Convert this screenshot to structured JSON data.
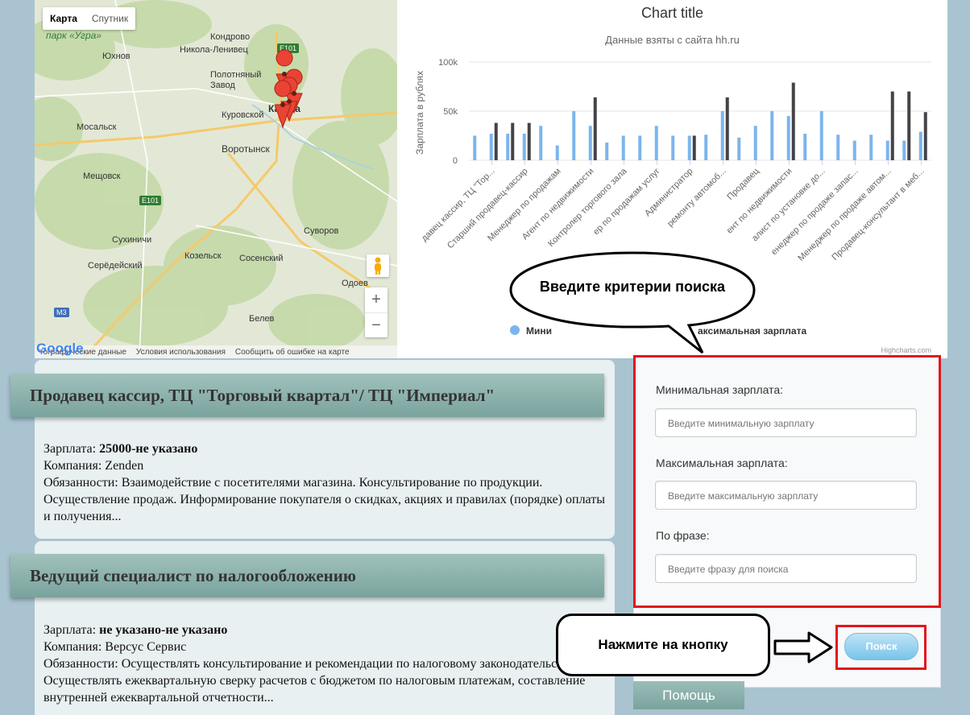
{
  "map": {
    "type_buttons": [
      "Карта",
      "Спутник"
    ],
    "towns": [
      "Кондрово",
      "Никола-Ленивец",
      "Юхнов",
      "Полотняный Завод",
      "Калуга",
      "Куровской",
      "Мосальск",
      "Воротынск",
      "Мещовск",
      "Сухиничи",
      "Серёдейский",
      "Козельск",
      "Сосенский",
      "Суворов",
      "Одоев",
      "Белев"
    ],
    "park_label": "парк «Угра»",
    "road_labels": [
      "E101",
      "E101",
      "M3"
    ],
    "zoom_in": "+",
    "zoom_out": "−",
    "footer": [
      "тографические данные",
      "Условия использования",
      "Сообщить об ошибке на карте"
    ],
    "logo": "Google"
  },
  "chart_data": {
    "type": "bar",
    "title": "Chart title",
    "subtitle": "Данные взяты с сайта hh.ru",
    "ylabel": "Зарплата в рублях",
    "ylim": [
      0,
      100000
    ],
    "yticks": [
      "0",
      "50k",
      "100k"
    ],
    "xticklabels": [
      "давец кассир, ТЦ \"Тор...",
      "Старший продавец-кассир",
      "Менеджер по продажам",
      "Агент по недвижимости",
      "Контролер торгового зала",
      "ер по продажам услуг",
      "Администратор",
      "ремонту автомоб...",
      "Продавец",
      "ент по недвижимости",
      "алист по установке до...",
      "енеджер по продаже запас...",
      "Менеджер по продаже автом...",
      "Продавец-консультант в меб..."
    ],
    "legend_visible": [
      "Мини",
      "аксимальная зарплата"
    ],
    "credit": "Highcharts.com",
    "min_series": [
      25000,
      27000,
      27000,
      27000,
      35000,
      15000,
      50000,
      35000,
      18000,
      25000,
      25000,
      35000,
      25000,
      25000,
      26000,
      50000,
      23000,
      35000,
      50000,
      45000,
      27000,
      50000,
      26000,
      20000,
      26000,
      20000,
      20000,
      29000
    ],
    "max_series": [
      0,
      38000,
      38000,
      38000,
      0,
      0,
      0,
      64000,
      0,
      0,
      0,
      0,
      0,
      25000,
      0,
      64000,
      0,
      0,
      0,
      79000,
      0,
      0,
      0,
      0,
      0,
      70000,
      70000,
      49000
    ]
  },
  "callouts": {
    "search_hint": "Введите критерии поиска",
    "button_hint": "Нажмите на кнопку"
  },
  "vacancies": [
    {
      "title": "Продавец кассир, ТЦ \"Торговый квартал\"/ ТЦ \"Империал\"",
      "salary_label": "Зарплата: ",
      "salary": "25000-не указано",
      "company_label": "Компания: ",
      "company": "Zenden",
      "duties_label": "Обязанности: ",
      "duties": "Взаимодействие с посетителями магазина. Консультирование по продукции. Осуществление продаж. Информирование покупателя о скидках, акциях и правилах (порядке) оплаты и получения..."
    },
    {
      "title": "Ведущий специалист по налогообложению",
      "salary_label": "Зарплата: ",
      "salary": "не указано-не указано",
      "company_label": "Компания: ",
      "company": "Версус Сервис",
      "duties_label": "Обязанности: ",
      "duties": "Осуществлять консультирование и рекомендации по налоговому законодательству. Осуществлять ежеквартальную сверку расчетов с бюджетом по налоговым платежам, составление внутренней ежеквартальной отчетности..."
    }
  ],
  "form": {
    "min_label": "Минимальная зарплата:",
    "min_placeholder": "Введите минимальную зарплату",
    "max_label": "Максимальная зарплата:",
    "max_placeholder": "Введите максимальную зарплату",
    "phrase_label": "По фразе:",
    "phrase_placeholder": "Введите фразу для поиска",
    "search_button": "Поиск",
    "help_button": "Помощь"
  },
  "colors": {
    "min_bar": "#7cb5ec",
    "max_bar": "#434348",
    "highlight": "#e3141e",
    "header_bar": "#8fb2ad"
  }
}
